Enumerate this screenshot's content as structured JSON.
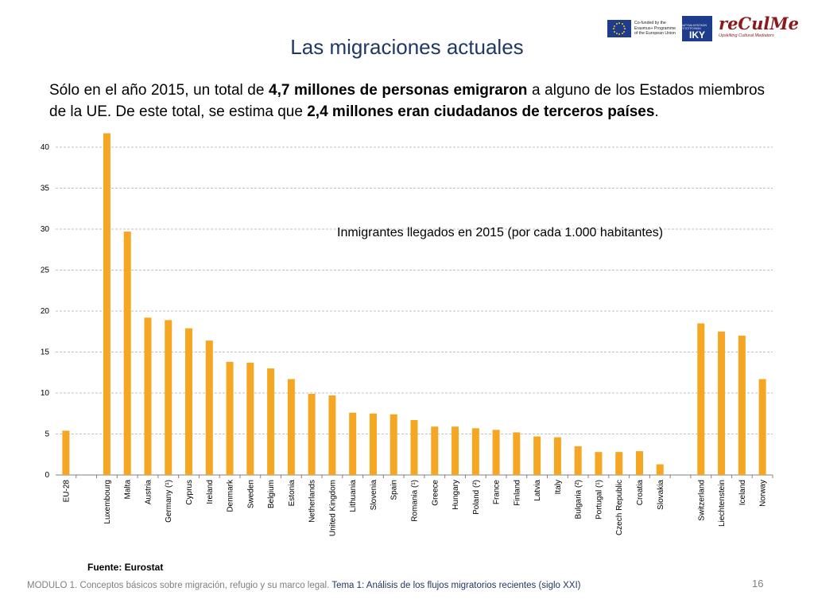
{
  "slide": {
    "title": "Las migraciones actuales",
    "intro": {
      "t1": "Sólo en el año 2015, un total de ",
      "b1": "4,7 millones de personas emigraron",
      "t2": " a alguno de los Estados miembros de la UE. De este total, se estima que ",
      "b2": "2,4 millones eran ciudadanos de terceros países",
      "t3": "."
    },
    "chart_note": "Inmigrantes llegados en 2015 (por cada 1.000 habitantes)",
    "source": "Fuente: Eurostat",
    "footer_module": "MODULO 1. Conceptos básicos sobre migración, refugio y su marco legal.",
    "footer_topic": "Tema 1: Análisis de los flujos migratorios recientes (siglo XXI)",
    "page_number": "16"
  },
  "logos": {
    "eu_text": [
      "Co-funded by the",
      "Erasmus+ Programme",
      "of the European Union"
    ],
    "iky_small": "ΙΔΡΥΜΑ ΚΡΑΤΙΚΩΝ ΥΠΟΤΡΟΦΙΩΝ",
    "iky": "IKY",
    "recult": "reCulMe",
    "recult_sub": "Upskilling Cultural Mediators"
  },
  "colors": {
    "bar": "#f5a623",
    "grid": "#c0c0c0",
    "title": "#1f3864"
  },
  "chart_data": {
    "type": "bar",
    "categories": [
      "EU-28",
      "",
      "Luxembourg",
      "Malta",
      "Austria",
      "Germany (¹)",
      "Cyprus",
      "Ireland",
      "Denmark",
      "Sweden",
      "Belgium",
      "Estonia",
      "Netherlands",
      "United Kingdom",
      "Lithuania",
      "Slovenia",
      "Spain",
      "Romania (¹)",
      "Greece",
      "Hungary",
      "Poland (²)",
      "France",
      "Finland",
      "Latvia",
      "Italy",
      "Bulgaria (²)",
      "Portugal (¹)",
      "Czech Republic",
      "Croatia",
      "Slovakia",
      "",
      "Switzerland",
      "Liechtenstein",
      "Iceland",
      "Norway"
    ],
    "values": [
      5.4,
      null,
      41.7,
      29.7,
      19.2,
      18.9,
      17.9,
      16.4,
      13.8,
      13.7,
      13.0,
      11.7,
      9.9,
      9.7,
      7.6,
      7.5,
      7.4,
      6.7,
      5.9,
      5.9,
      5.7,
      5.5,
      5.2,
      4.7,
      4.6,
      3.5,
      2.8,
      2.8,
      2.9,
      1.3,
      null,
      18.5,
      17.5,
      17.0,
      11.7
    ],
    "yticks": [
      0,
      5,
      10,
      15,
      20,
      25,
      30,
      35,
      40
    ],
    "ylim": [
      0,
      42
    ],
    "grid": true
  }
}
